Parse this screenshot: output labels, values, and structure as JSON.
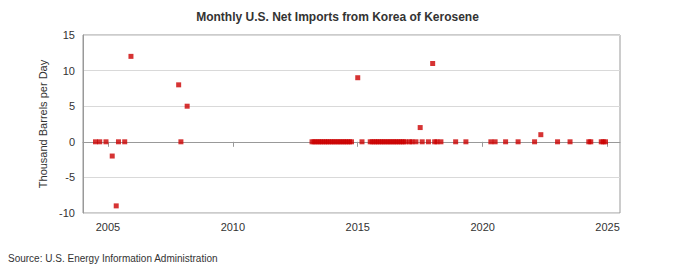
{
  "chart_data": {
    "type": "scatter",
    "title": "Monthly U.S. Net Imports from Korea of Kerosene",
    "y_label": "Thousand Barrels per Day",
    "source": "Source: U.S. Energy Information Administration",
    "color": "#cc0000",
    "marker": "square",
    "grid": true,
    "x": [
      2004.5,
      2004.67,
      2004.92,
      2005.17,
      2005.33,
      2005.42,
      2005.67,
      2005.92,
      2007.83,
      2007.92,
      2008.17,
      2013.17,
      2013.25,
      2013.33,
      2013.42,
      2013.5,
      2013.58,
      2013.67,
      2013.75,
      2013.83,
      2013.92,
      2014.0,
      2014.08,
      2014.17,
      2014.25,
      2014.33,
      2014.42,
      2014.5,
      2014.58,
      2014.67,
      2014.75,
      2015.0,
      2015.17,
      2015.5,
      2015.58,
      2015.67,
      2015.75,
      2015.83,
      2015.92,
      2016.0,
      2016.08,
      2016.17,
      2016.25,
      2016.33,
      2016.42,
      2016.5,
      2016.58,
      2016.67,
      2016.75,
      2016.83,
      2016.92,
      2017.08,
      2017.17,
      2017.33,
      2017.5,
      2017.58,
      2017.83,
      2018.0,
      2018.08,
      2018.17,
      2018.33,
      2018.92,
      2019.33,
      2020.33,
      2020.5,
      2020.92,
      2021.42,
      2022.08,
      2022.33,
      2023.0,
      2023.5,
      2024.25,
      2024.33,
      2024.75,
      2024.83,
      2024.92
    ],
    "values": [
      0,
      0,
      0,
      -2,
      -9,
      0,
      0,
      12,
      8,
      0,
      5,
      0,
      0,
      0,
      0,
      0,
      0,
      0,
      0,
      0,
      0,
      0,
      0,
      0,
      0,
      0,
      0,
      0,
      0,
      0,
      0,
      9,
      0,
      0,
      0,
      0,
      0,
      0,
      0,
      0,
      0,
      0,
      0,
      0,
      0,
      0,
      0,
      0,
      0,
      0,
      0,
      0,
      0,
      0,
      2,
      0,
      0,
      11,
      0,
      0,
      0,
      0,
      0,
      0,
      0,
      0,
      0,
      0,
      1,
      0,
      0,
      0,
      0,
      0,
      0,
      0
    ],
    "xlim": [
      2004,
      2025.5
    ],
    "xticks": [
      2005,
      2010,
      2015,
      2020,
      2025
    ],
    "ylim": [
      -10,
      15
    ],
    "yticks": [
      -10,
      -5,
      0,
      5,
      10,
      15
    ]
  }
}
